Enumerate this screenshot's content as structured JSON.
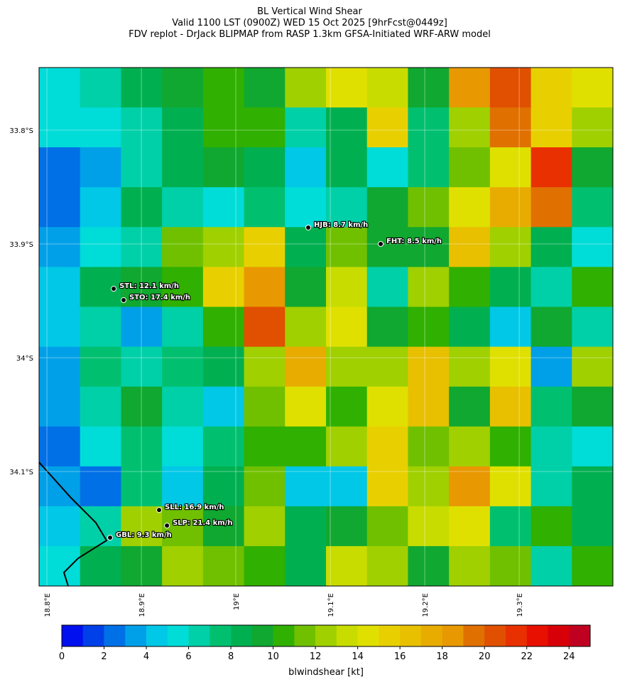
{
  "chart_data": {
    "type": "heatmap-map",
    "title_lines": [
      "BL Vertical Wind Shear",
      "Valid 1100 LST (0900Z) WED 15 Oct 2025 [9hrFcst@0449z]",
      "FDV replot - DrJack BLIPMAP from RASP 1.3km GFSA-Initiated WRF-ARW model"
    ],
    "xlim": [
      18.7917,
      19.3992
    ],
    "ylim": [
      -34.2006,
      -33.745
    ],
    "xticks": [
      {
        "value": 18.8,
        "label": "18.8°E"
      },
      {
        "value": 18.9,
        "label": "18.9°E"
      },
      {
        "value": 19.0,
        "label": "19°E"
      },
      {
        "value": 19.1,
        "label": "19.1°E"
      },
      {
        "value": 19.2,
        "label": "19.2°E"
      },
      {
        "value": 19.3,
        "label": "19.3°E"
      }
    ],
    "yticks": [
      {
        "value": -33.8,
        "label": "33.8°S"
      },
      {
        "value": -33.9,
        "label": "33.9°S"
      },
      {
        "value": -34.0,
        "label": "34°S"
      },
      {
        "value": -34.1,
        "label": "34.1°S"
      }
    ],
    "grid": true,
    "field": [
      [
        5,
        6,
        8,
        9,
        10,
        9,
        12,
        14,
        13,
        9,
        18,
        20,
        15,
        14
      ],
      [
        5,
        5,
        6,
        8,
        10,
        10,
        6,
        8,
        15,
        7,
        12,
        19,
        15,
        12
      ],
      [
        2,
        3,
        6,
        8,
        9,
        8,
        4,
        8,
        5,
        7,
        11,
        14,
        21,
        9
      ],
      [
        2,
        4,
        8,
        6,
        5,
        7,
        5,
        6,
        9,
        11,
        14,
        17,
        19,
        7
      ],
      [
        3,
        5,
        6,
        11,
        12,
        15,
        8,
        11,
        9,
        9,
        16,
        12,
        8,
        5
      ],
      [
        4,
        8,
        9,
        10,
        15,
        18,
        9,
        13,
        6,
        12,
        10,
        8,
        6,
        10
      ],
      [
        4,
        6,
        3,
        6,
        10,
        20,
        12,
        14,
        9,
        10,
        8,
        4,
        9,
        6
      ],
      [
        3,
        7,
        6,
        7,
        8,
        12,
        17,
        12,
        12,
        16,
        12,
        14,
        3,
        12
      ],
      [
        3,
        6,
        9,
        6,
        4,
        11,
        14,
        10,
        14,
        16,
        9,
        16,
        7,
        9
      ],
      [
        2,
        5,
        7,
        5,
        7,
        10,
        10,
        12,
        15,
        11,
        12,
        10,
        6,
        5
      ],
      [
        3,
        2,
        7,
        4,
        8,
        11,
        4,
        4,
        15,
        12,
        18,
        14,
        6,
        8
      ],
      [
        4,
        6,
        12,
        11,
        9,
        12,
        8,
        9,
        11,
        13,
        14,
        7,
        10,
        8
      ],
      [
        5,
        8,
        9,
        12,
        11,
        10,
        8,
        13,
        12,
        9,
        12,
        11,
        6,
        10
      ]
    ],
    "stations": [
      {
        "label": "HJB: 8.7 km/h",
        "lon": 19.0767,
        "lat": -33.8856
      },
      {
        "label": "FHT: 8.5 km/h",
        "lon": 19.1534,
        "lat": -33.9
      },
      {
        "label": "STL: 12.1 km/h",
        "lon": 18.8707,
        "lat": -33.9394
      },
      {
        "label": "STO: 17.4 km/h",
        "lon": 18.8812,
        "lat": -33.9494
      },
      {
        "label": "SLL: 16.9 km/h",
        "lon": 18.9188,
        "lat": -34.1338
      },
      {
        "label": "SLP: 21.4 km/h",
        "lon": 18.9271,
        "lat": -34.1475
      },
      {
        "label": "GBL: 9.3 km/h",
        "lon": 18.8669,
        "lat": -34.1581
      }
    ],
    "colorbar": {
      "label": "blwindshear [kt]",
      "lim": [
        0,
        25
      ],
      "ticks": [
        0,
        2,
        4,
        6,
        8,
        10,
        12,
        14,
        16,
        18,
        20,
        22,
        24
      ],
      "colors": [
        "#0010ee",
        "#0040e8",
        "#0070e6",
        "#00a0e8",
        "#00c8e6",
        "#00dcd8",
        "#00d0a8",
        "#00c070",
        "#00b050",
        "#10a830",
        "#30b000",
        "#70c000",
        "#a0d000",
        "#c8dc00",
        "#e0e000",
        "#e8d000",
        "#e8c000",
        "#e8ac00",
        "#e89800",
        "#e07000",
        "#e05000",
        "#e83000",
        "#e81000",
        "#d80008",
        "#c00020"
      ]
    }
  }
}
